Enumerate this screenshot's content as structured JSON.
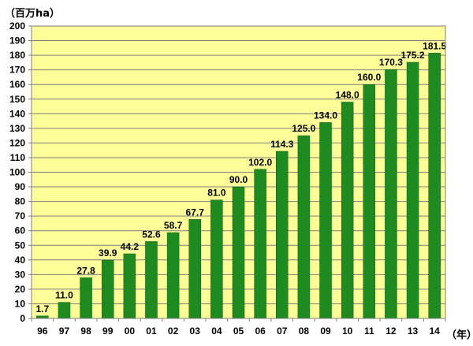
{
  "chart_data": {
    "type": "bar",
    "y_unit_label": "（百万ha）",
    "x_unit_label": "（年）",
    "categories": [
      "96",
      "97",
      "98",
      "99",
      "00",
      "01",
      "02",
      "03",
      "04",
      "05",
      "06",
      "07",
      "08",
      "09",
      "10",
      "11",
      "12",
      "13",
      "14"
    ],
    "values": [
      1.7,
      11.0,
      27.8,
      39.9,
      44.2,
      52.6,
      58.7,
      67.7,
      81.0,
      90.0,
      102.0,
      114.3,
      125.0,
      134.0,
      148.0,
      160.0,
      170.3,
      175.2,
      181.5
    ],
    "value_labels": [
      "1.7",
      "11.0",
      "27.8",
      "39.9",
      "44.2",
      "52.6",
      "58.7",
      "67.7",
      "81.0",
      "90.0",
      "102.0",
      "114.3",
      "125.0",
      "134.0",
      "148.0",
      "160.0",
      "170.3",
      "175.2",
      "181.5"
    ],
    "ylim": [
      0,
      200
    ],
    "ytick_step": 10,
    "grid": true,
    "colors": {
      "bar": "#1f8a1f",
      "bar_edge": "#0f5f0f",
      "plot_bg": "#ffff99",
      "grid": "#7f7f7f",
      "axis": "#7f7f7f"
    }
  }
}
